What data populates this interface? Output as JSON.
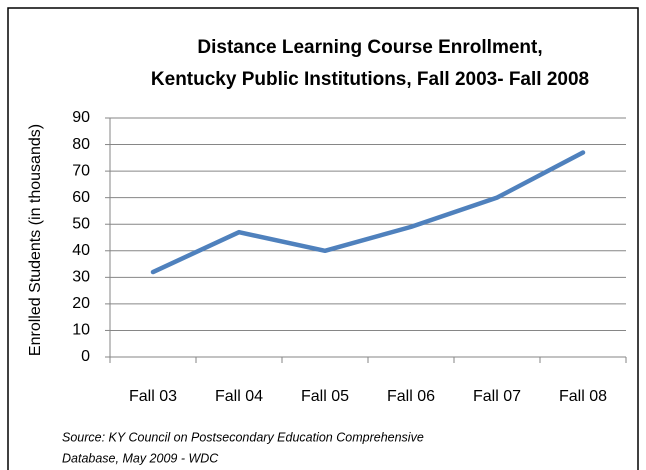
{
  "chart_data": {
    "type": "line",
    "title": [
      "Distance Learning Course Enrollment,",
      "Kentucky Public Institutions, Fall 2003- Fall 2008"
    ],
    "y_label": "Enrolled Students  (in thousands)",
    "categories": [
      "Fall 03",
      "Fall 04",
      "Fall 05",
      "Fall 06",
      "Fall 07",
      "Fall 08"
    ],
    "series": [
      {
        "name": "Enrollment",
        "color": "#4f81bd",
        "values": [
          32,
          47,
          40,
          49,
          60,
          77
        ]
      }
    ],
    "ylim": [
      0,
      90
    ],
    "yticks": [
      0,
      10,
      20,
      30,
      40,
      50,
      60,
      70,
      80,
      90
    ],
    "grid": true,
    "source": [
      "Source: KY Council on Postsecondary Education Comprehensive",
      "Database, May 2009 - WDC"
    ]
  }
}
